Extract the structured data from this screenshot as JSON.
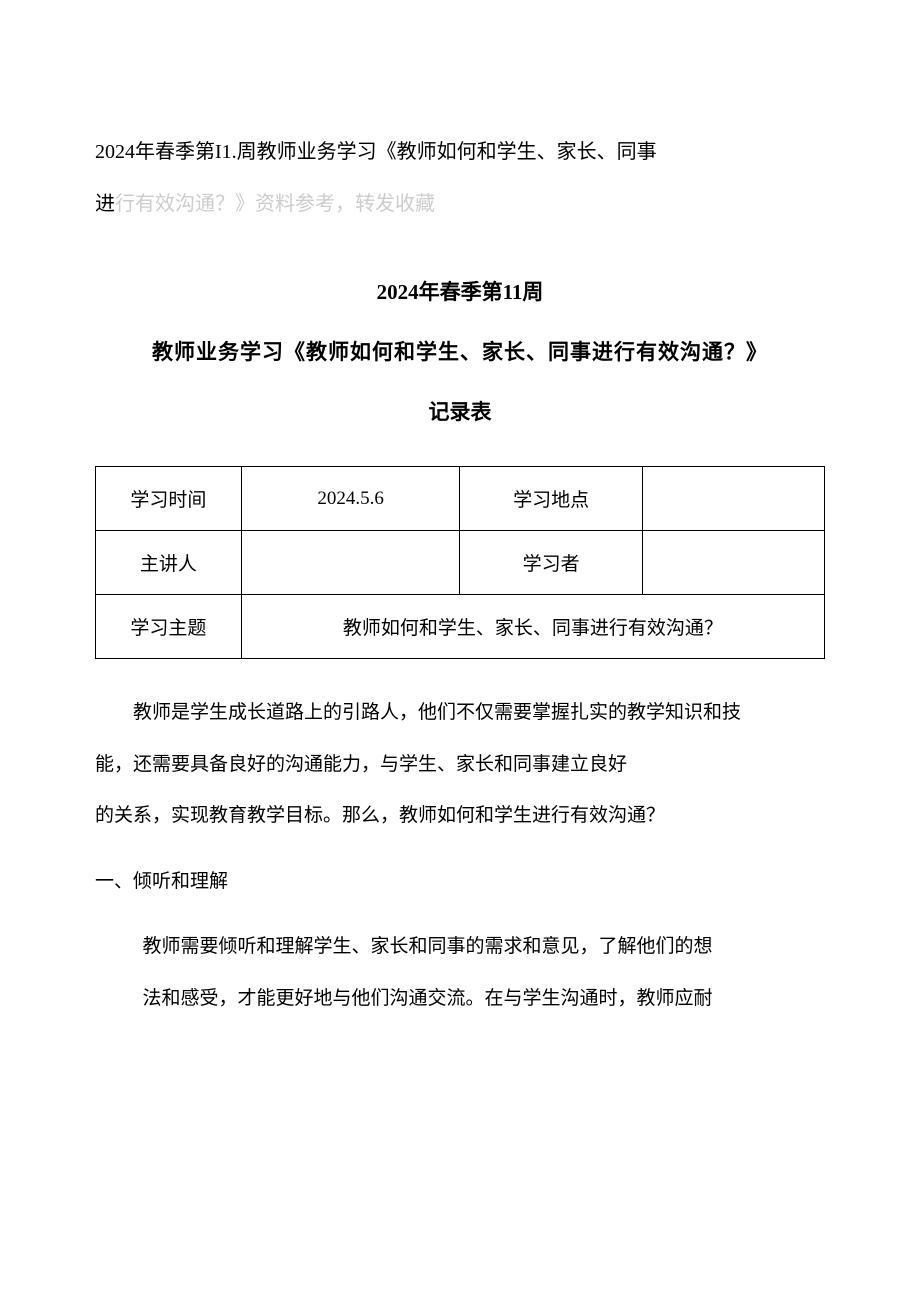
{
  "header": {
    "line1": "2024年春季第I1.周教师业务学习《教师如何和学生、家长、同事",
    "line2_prefix": "进",
    "line2_gray": "行有效沟通？》资料参考，转发收藏"
  },
  "titles": {
    "line1": "2024年春季第11周",
    "line2": "教师业务学习《教师如何和学生、家长、同事进行有效沟通？》",
    "line3": "记录表"
  },
  "table": {
    "row1": {
      "label1": "学习时间",
      "value1": "2024.5.6",
      "label2": "学习地点",
      "value2": ""
    },
    "row2": {
      "label1": "主讲人",
      "value1": "",
      "label2": "学习者",
      "value2": ""
    },
    "row3": {
      "label": "学习主题",
      "value": "教师如何和学生、家长、同事进行有效沟通？"
    }
  },
  "body": {
    "para1": "教师是学生成长道路上的引路人，他们不仅需要掌握扎实的教学知识和技",
    "para2": "能，还需要具备良好的沟通能力，与学生、家长和同事建立良好",
    "para3": "的关系，实现教育教学目标。那么，教师如何和学生进行有效沟通？",
    "heading1": "一、倾听和理解",
    "para4": "教师需要倾听和理解学生、家长和同事的需求和意见，了解他们的想",
    "para5": "法和感受，才能更好地与他们沟通交流。在与学生沟通时，教师应耐"
  }
}
